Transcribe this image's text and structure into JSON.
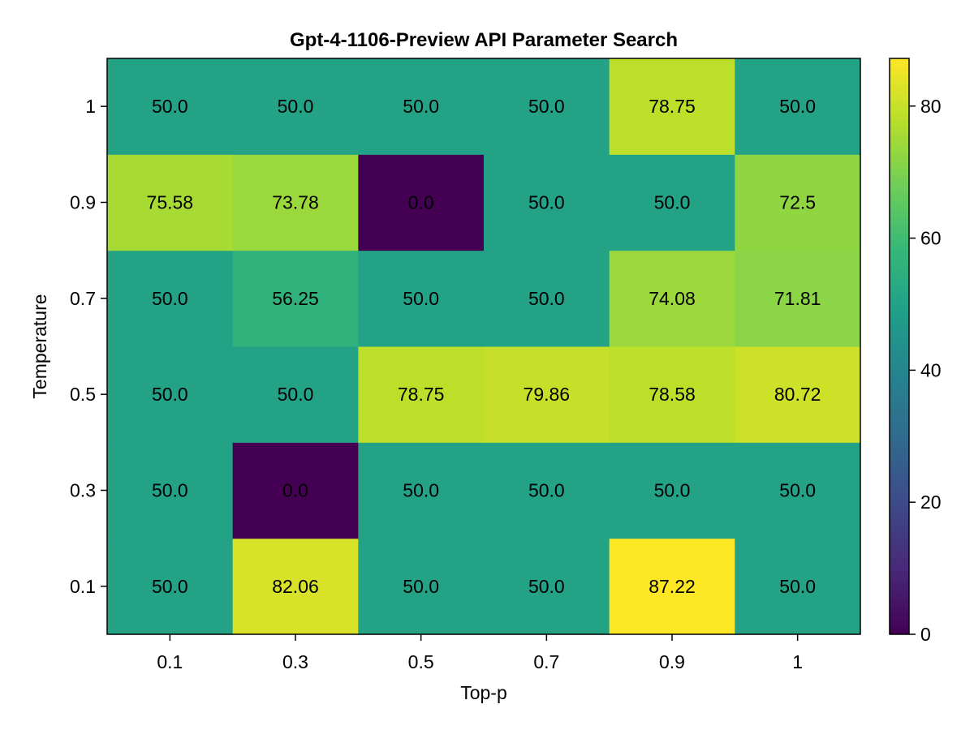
{
  "chart_data": {
    "type": "heatmap",
    "title": "Gpt-4-1106-Preview API Parameter Search",
    "xlabel": "Top-p",
    "ylabel": "Temperature",
    "x_categories": [
      "0.1",
      "0.3",
      "0.5",
      "0.7",
      "0.9",
      "1"
    ],
    "y_categories": [
      "0.1",
      "0.3",
      "0.5",
      "0.7",
      "0.9",
      "1"
    ],
    "values": [
      [
        50.0,
        82.06,
        50.0,
        50.0,
        87.22,
        50.0
      ],
      [
        50.0,
        0.0,
        50.0,
        50.0,
        50.0,
        50.0
      ],
      [
        50.0,
        50.0,
        78.75,
        79.86,
        78.58,
        80.72
      ],
      [
        50.0,
        56.25,
        50.0,
        50.0,
        74.08,
        71.81
      ],
      [
        75.58,
        73.78,
        0.0,
        50.0,
        50.0,
        72.5
      ],
      [
        50.0,
        50.0,
        50.0,
        50.0,
        78.75,
        50.0
      ]
    ],
    "value_labels": [
      [
        "50.0",
        "82.06",
        "50.0",
        "50.0",
        "87.22",
        "50.0"
      ],
      [
        "50.0",
        "0.0",
        "50.0",
        "50.0",
        "50.0",
        "50.0"
      ],
      [
        "50.0",
        "50.0",
        "78.75",
        "79.86",
        "78.58",
        "80.72"
      ],
      [
        "50.0",
        "56.25",
        "50.0",
        "50.0",
        "74.08",
        "71.81"
      ],
      [
        "75.58",
        "73.78",
        "0.0",
        "50.0",
        "50.0",
        "72.5"
      ],
      [
        "50.0",
        "50.0",
        "50.0",
        "50.0",
        "78.75",
        "50.0"
      ]
    ],
    "colorbar": {
      "colormap": "viridis",
      "range": [
        0,
        87.22
      ],
      "ticks": [
        0,
        20,
        40,
        60,
        80
      ],
      "tick_labels": [
        "0",
        "20",
        "40",
        "60",
        "80"
      ]
    },
    "grid": false
  }
}
